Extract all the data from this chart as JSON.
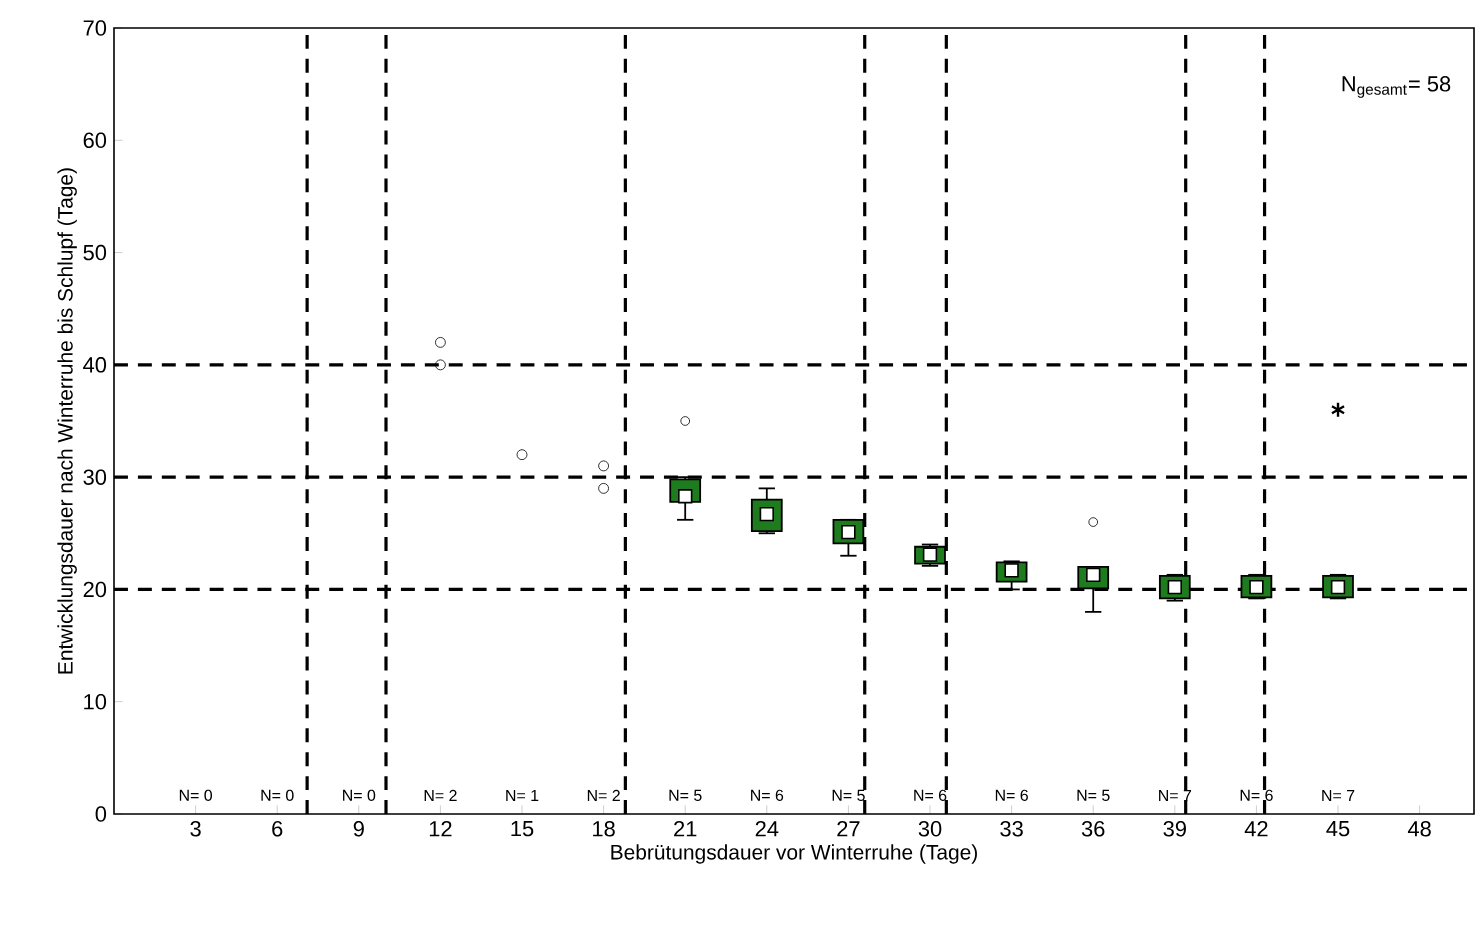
{
  "chart_data": {
    "type": "box",
    "xlabel": "Bebrütungsdauer vor Winterruhe (Tage)",
    "ylabel": "Entwicklungsdauer nach Winterruhe bis Schlupf (Tage)",
    "xlim": [
      0,
      50
    ],
    "xticks": [
      3,
      6,
      9,
      12,
      15,
      18,
      21,
      24,
      27,
      30,
      33,
      36,
      39,
      42,
      45,
      48
    ],
    "ylim": [
      0,
      70
    ],
    "yticks": [
      0,
      10,
      20,
      30,
      40,
      50,
      60,
      70
    ],
    "grid": false,
    "series": [
      {
        "color": "#1e7b1e",
        "x": [
          21,
          24,
          27,
          30,
          33,
          36,
          39,
          42,
          45
        ],
        "boxes": [
          {
            "low": 26.2,
            "q1": 27.8,
            "median": 28.3,
            "q3": 29.8,
            "high": 30,
            "outliers": [
              35
            ]
          },
          {
            "low": 25,
            "q1": 25.2,
            "median": 26.7,
            "q3": 28,
            "high": 29
          },
          {
            "low": 23,
            "q1": 24.1,
            "median": 25.1,
            "q3": 26.2,
            "high": 26.2
          },
          {
            "low": 22.1,
            "q1": 22.3,
            "median": 23.1,
            "q3": 23.8,
            "high": 24
          },
          {
            "low": 20,
            "q1": 20.7,
            "median": 21.7,
            "q3": 22.4,
            "high": 22.5
          },
          {
            "low": 18,
            "q1": 20.1,
            "median": 21.3,
            "q3": 22,
            "high": 22,
            "outliers": [
              26
            ]
          },
          {
            "low": 19,
            "q1": 19.2,
            "median": 20.2,
            "q3": 21.2,
            "high": 21.3
          },
          {
            "low": 19.2,
            "q1": 19.3,
            "median": 20.2,
            "q3": 21.2,
            "high": 21.3
          },
          {
            "low": 19.2,
            "q1": 19.3,
            "median": 20.2,
            "q3": 21.2,
            "high": 21.3
          }
        ]
      },
      {
        "type": "scatter",
        "marker": "circle",
        "color": "#000000",
        "x": [
          12,
          12,
          15,
          18,
          18
        ],
        "values": [
          42,
          40,
          32,
          31,
          29
        ]
      },
      {
        "type": "scatter",
        "marker": "cross",
        "color": "#000000",
        "x": [
          45
        ],
        "values": [
          36
        ]
      }
    ],
    "ref_lines": [
      {
        "axis": "x",
        "value": 7.1,
        "line_style": "dashed"
      },
      {
        "axis": "x",
        "value": 10,
        "line_style": "dashed"
      },
      {
        "axis": "x",
        "value": 18.8,
        "line_style": "dashed"
      },
      {
        "axis": "x",
        "value": 27.6,
        "line_style": "dashed"
      },
      {
        "axis": "x",
        "value": 30.6,
        "line_style": "dashed"
      },
      {
        "axis": "x",
        "value": 39.4,
        "line_style": "dashed"
      },
      {
        "axis": "x",
        "value": 42.3,
        "line_style": "dashed"
      },
      {
        "axis": "y",
        "value": 20,
        "line_style": "dashed"
      },
      {
        "axis": "y",
        "value": 30,
        "line_style": "dashed"
      },
      {
        "axis": "y",
        "value": 40,
        "line_style": "dashed"
      }
    ],
    "annotations": [
      "N$_{gesamt}$= 58",
      "N= 0",
      "N= 0",
      "N= 0",
      "N= 2",
      "N= 1",
      "N= 2",
      "N= 5",
      "N= 6",
      "N= 5",
      "N= 6",
      "N= 6",
      "N= 5",
      "N= 7",
      "N= 6",
      "N= 7"
    ]
  }
}
